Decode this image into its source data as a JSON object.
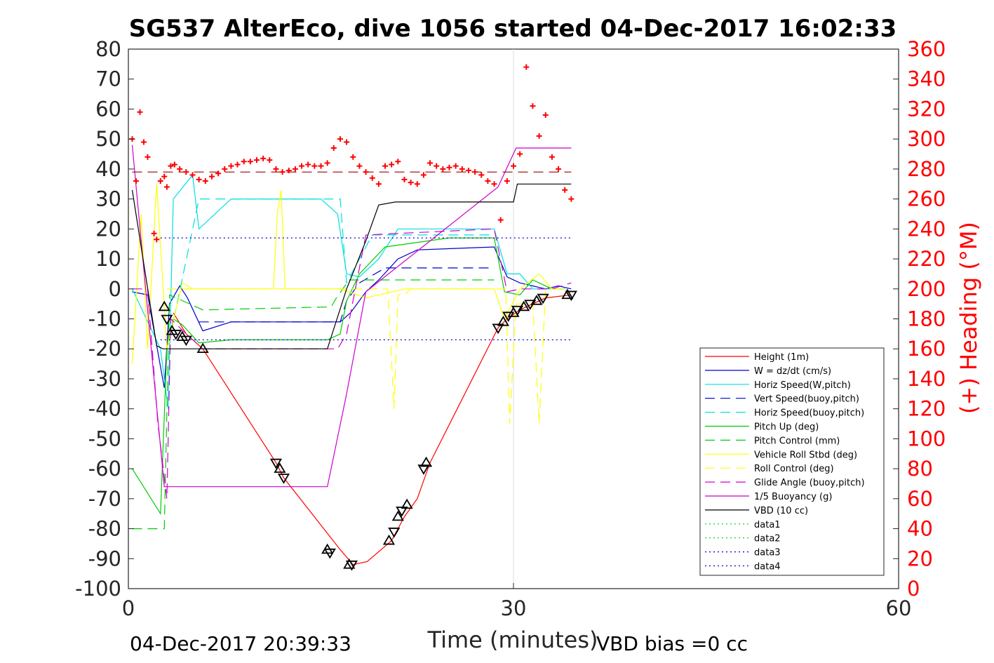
{
  "title": "SG537 AlterEco, dive 1056 started 04-Dec-2017 16:02:33",
  "footer": {
    "left": "04-Dec-2017 20:39:33",
    "right": "VBD bias =0 cc"
  },
  "chart_data": {
    "type": "line",
    "title": "SG537 AlterEco, dive 1056 started 04-Dec-2017 16:02:33",
    "xlabel": "Time (minutes)",
    "ylabel": "",
    "y2label": "(+) Heading (°M)",
    "xlim": [
      0,
      60
    ],
    "ylim": [
      -100,
      80
    ],
    "y2lim": [
      0,
      360
    ],
    "xticks": [
      "0",
      "30",
      "60"
    ],
    "yticks": [
      "80",
      "70",
      "60",
      "50",
      "40",
      "30",
      "20",
      "10",
      "0",
      "-10",
      "-20",
      "-30",
      "-40",
      "-50",
      "-60",
      "-70",
      "-80",
      "-90",
      "-100"
    ],
    "y2ticks": [
      "360",
      "340",
      "320",
      "300",
      "280",
      "260",
      "240",
      "220",
      "200",
      "180",
      "160",
      "140",
      "120",
      "100",
      "80",
      "60",
      "40",
      "20",
      "0"
    ],
    "grid": "x=30 only",
    "legend_position": "bottom-right inside",
    "series": [
      {
        "name": "Height (1m)",
        "color": "#ff0000",
        "style": "solid",
        "x": [
          3.5,
          4.5,
          5.8,
          11.5,
          12.1,
          16.5,
          17.5,
          18.6,
          20.5,
          21.5,
          22.5,
          23.5,
          28.8,
          29.5,
          30.5,
          31.5,
          32.5,
          34.5
        ],
        "values": [
          -8,
          -15,
          -20,
          -58,
          -63,
          -87,
          -92,
          -91,
          -84,
          -76,
          -70,
          -58,
          -13,
          -10,
          -7,
          -5,
          -3,
          -2
        ]
      },
      {
        "name": "W = dz/dt (cm/s)",
        "color": "#0000cc",
        "style": "solid",
        "x": [
          0.3,
          1.5,
          2.8,
          3.2,
          4.0,
          4.6,
          5.8,
          8,
          12,
          15,
          16.5,
          17.3,
          18.5,
          19.5,
          21,
          22.5,
          28.5,
          29.5,
          30.5,
          31.5,
          32.5,
          33.5,
          34.5
        ],
        "values": [
          -1,
          -2,
          -33,
          -5,
          1,
          -3,
          -14,
          -11,
          -11,
          -11,
          -11,
          -8,
          -1,
          3,
          10,
          13,
          14,
          4,
          2,
          1,
          0,
          1,
          0
        ]
      },
      {
        "name": "Horiz Speed(W,pitch)",
        "color": "#00e0e0",
        "style": "solid",
        "x": [
          0.3,
          2.5,
          3.1,
          3.5,
          5.0,
          5.5,
          8,
          11,
          15,
          16.3,
          17.0,
          18,
          19.5,
          21,
          25,
          28.5,
          29.5,
          30.5,
          31.5,
          33,
          34
        ],
        "values": [
          0,
          -20,
          -40,
          30,
          38,
          20,
          30,
          30,
          30,
          25,
          5,
          4,
          10,
          20,
          20,
          20,
          5,
          5,
          0,
          0,
          0
        ]
      },
      {
        "name": "Vert Speed(buoy,pitch)",
        "color": "#0000cc",
        "style": "dashed",
        "x": [
          5.5,
          16.5,
          17.0,
          18,
          20,
          28.5
        ],
        "values": [
          -11,
          -11,
          -4,
          2,
          7,
          7
        ]
      },
      {
        "name": "Horiz Speed(buoy,pitch)",
        "color": "#00e0e0",
        "style": "dashed",
        "x": [
          3.3,
          5.5,
          16.5,
          17.0,
          19,
          28.5
        ],
        "values": [
          -15,
          30,
          30,
          2,
          18,
          18
        ]
      },
      {
        "name": "Pitch Up (deg)",
        "color": "#00cc00",
        "style": "solid",
        "x": [
          0.3,
          2.5,
          3.0,
          3.5,
          4.2,
          5.5,
          8,
          12,
          15.5,
          16.5,
          17.0,
          18,
          20,
          25,
          28.5,
          29.3,
          30.5,
          31.5,
          33,
          34
        ],
        "values": [
          -60,
          -75,
          -20,
          -10,
          -12,
          -18,
          -17,
          -17,
          -17,
          -15,
          -4,
          5,
          14,
          17,
          17,
          -1,
          -2,
          3,
          0,
          0
        ]
      },
      {
        "name": "Pitch Control (mm)",
        "color": "#00cc00",
        "style": "dashed",
        "x": [
          0.3,
          2.8,
          3.2,
          5.8,
          15.8,
          16.2,
          17.2,
          28.5
        ],
        "values": [
          -80,
          -80,
          -2,
          -7,
          -6,
          -3,
          3,
          3
        ]
      },
      {
        "name": "Vehicle Roll Stbd (deg)",
        "color": "#ffff00",
        "style": "solid",
        "x": [
          0.3,
          1.0,
          1.5,
          2.2,
          3.0,
          4.2,
          5.0,
          11.3,
          11.6,
          11.9,
          12.2,
          16.5,
          18.5,
          21.5,
          26,
          28.5,
          29.3,
          30.5,
          32,
          33,
          34
        ],
        "values": [
          -25,
          25,
          -20,
          35,
          -20,
          2,
          0,
          0,
          25,
          33,
          0,
          0,
          -3,
          0,
          0,
          0,
          -10,
          0,
          5,
          0,
          0
        ]
      },
      {
        "name": "Roll Control (deg)",
        "color": "#ffff00",
        "style": "dashed",
        "x": [
          3.0,
          16.0,
          20.2,
          20.7,
          21.0,
          21.5,
          22.0,
          28.5,
          29.4,
          29.7,
          30.2,
          31.5,
          32.0,
          32.5,
          34
        ],
        "values": [
          0,
          0,
          0,
          -40,
          -2,
          -2,
          0,
          0,
          0,
          -45,
          -5,
          -5,
          -45,
          0,
          0
        ]
      },
      {
        "name": "Glide Angle (buoy,pitch)",
        "color": "#cc00cc",
        "style": "dashed",
        "x": [
          0.3,
          1.5,
          2.3,
          3.0,
          3.3,
          4.5,
          5.8,
          16.3,
          17.0,
          18.5,
          28.5,
          29.5,
          30.5,
          33,
          34.5
        ],
        "values": [
          0,
          0,
          -45,
          -70,
          -10,
          -15,
          -20,
          -20,
          -15,
          18,
          20,
          -1,
          0,
          0,
          2
        ]
      },
      {
        "name": "1/5 Buoyancy (g)",
        "color": "#cc00cc",
        "style": "solid",
        "x": [
          0.3,
          2.0,
          2.8,
          3.3,
          5.5,
          15.5,
          17.0,
          18.5,
          28.8,
          30.2,
          34.5
        ],
        "values": [
          48,
          -30,
          -66,
          -66,
          -66,
          -66,
          -35,
          -1,
          34,
          47,
          47
        ]
      },
      {
        "name": "VBD (10 cc)",
        "color": "#000000",
        "style": "solid",
        "x": [
          0.3,
          2.2,
          2.7,
          3.0,
          5.5,
          15.5,
          17.0,
          18.5,
          19.5,
          20.8,
          30.0,
          30.3,
          32.0,
          34.5
        ],
        "values": [
          33,
          -19,
          -20,
          -20,
          -20,
          -20,
          0,
          16,
          28,
          29,
          29,
          35,
          35,
          35
        ]
      },
      {
        "name": "data1",
        "color": "#00cc00",
        "style": "dotted",
        "x": [],
        "values": []
      },
      {
        "name": "data2",
        "color": "#00cc00",
        "style": "dotted",
        "x": [],
        "values": []
      },
      {
        "name": "data3",
        "color": "#0000cc",
        "style": "dotted",
        "x": [
          2.5,
          34.5
        ],
        "values": [
          17,
          17
        ]
      },
      {
        "name": "data4",
        "color": "#0000cc",
        "style": "dotted",
        "x": [
          2.5,
          34.5
        ],
        "values": [
          -17,
          -17
        ]
      }
    ],
    "extra_series": [
      {
        "kind": "dashed-line",
        "color": "#990000",
        "x": [
          0.3,
          34.5
        ],
        "values": [
          39,
          39
        ]
      },
      {
        "kind": "triangle-markers",
        "color": "#000000",
        "x": [
          2.8,
          3.0,
          3.4,
          3.7,
          4.2,
          4.5,
          5.8,
          11.5,
          11.8,
          12.1,
          15.5,
          15.7,
          17.2,
          17.4,
          20.3,
          20.7,
          21.0,
          21.3,
          21.7,
          23.0,
          23.2,
          28.8,
          29.2,
          29.6,
          30.0,
          30.3,
          30.8,
          31.3,
          31.8,
          32.3,
          34.2,
          34.5
        ],
        "values": [
          -6,
          -10,
          -14,
          -15,
          -16,
          -17,
          -20,
          -58,
          -60,
          -63,
          -87,
          -88,
          -92,
          -92,
          -84,
          -81,
          -76,
          -74,
          -72,
          -60,
          -58,
          -13,
          -11,
          -9,
          -8,
          -7,
          -6,
          -5,
          -4,
          -3,
          -2,
          -2
        ]
      },
      {
        "kind": "heading-plus-markers",
        "axis": "right",
        "color": "#ff0000",
        "x": [
          0.3,
          0.6,
          0.9,
          1.2,
          1.5,
          2.0,
          2.2,
          2.5,
          2.8,
          3.0,
          3.3,
          3.6,
          4.0,
          4.5,
          5.0,
          5.5,
          6.0,
          6.5,
          7.0,
          7.5,
          8.0,
          8.5,
          9.0,
          9.5,
          10.0,
          10.5,
          11.0,
          11.5,
          12.0,
          12.5,
          13.0,
          13.5,
          14.0,
          14.5,
          15.0,
          15.5,
          16.0,
          16.5,
          17.0,
          17.5,
          18.0,
          18.5,
          19.0,
          19.5,
          20.0,
          20.5,
          21.0,
          21.5,
          22.0,
          22.5,
          23.0,
          23.5,
          24.0,
          24.5,
          25.0,
          25.5,
          26.0,
          26.5,
          27.0,
          27.5,
          28.0,
          28.5,
          29.0,
          29.5,
          30.0,
          30.5,
          31.0,
          31.5,
          32.0,
          32.5,
          33.0,
          33.5,
          34.0,
          34.5
        ],
        "values": [
          300,
          272,
          318,
          298,
          288,
          237,
          233,
          272,
          275,
          268,
          282,
          283,
          280,
          278,
          276,
          273,
          272,
          275,
          277,
          280,
          282,
          283,
          285,
          285,
          286,
          287,
          286,
          280,
          278,
          279,
          280,
          282,
          283,
          282,
          282,
          284,
          294,
          300,
          298,
          288,
          282,
          278,
          274,
          270,
          282,
          283,
          285,
          273,
          271,
          270,
          276,
          284,
          282,
          280,
          281,
          282,
          280,
          279,
          278,
          276,
          272,
          270,
          246,
          272,
          282,
          290,
          348,
          322,
          302,
          316,
          288,
          280,
          266,
          260
        ]
      }
    ]
  }
}
